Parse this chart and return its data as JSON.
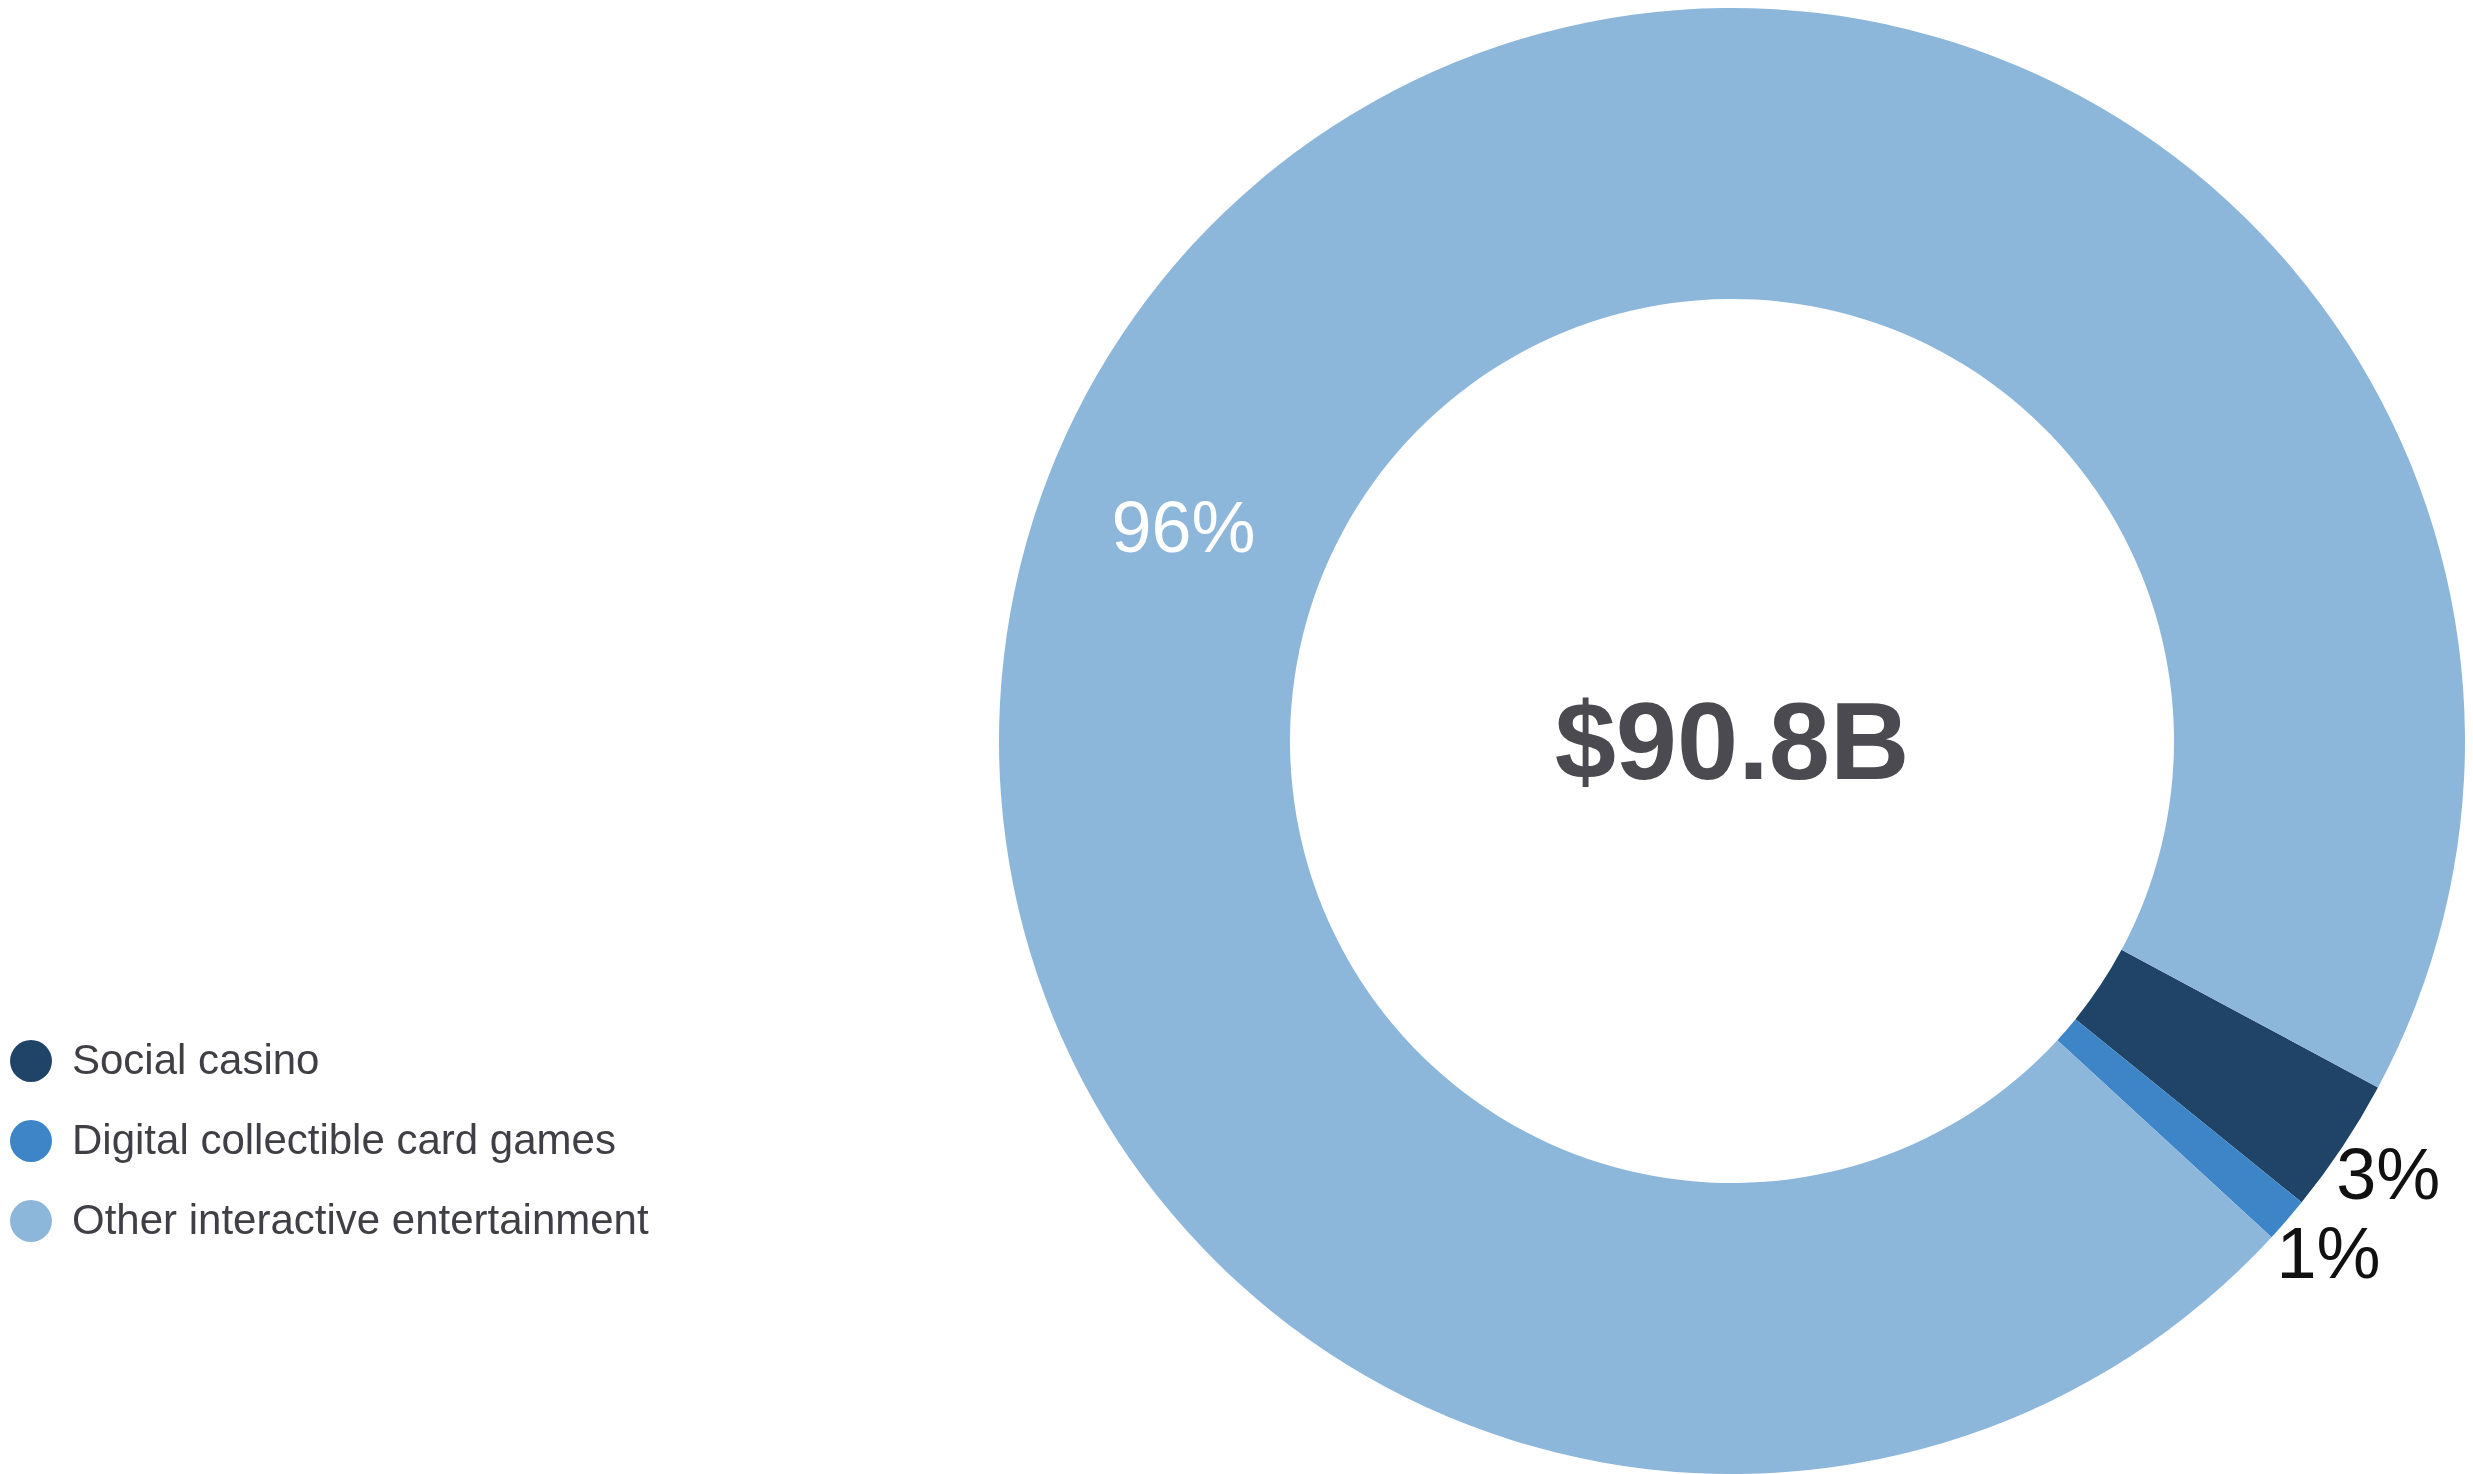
{
  "chart_data": {
    "type": "donut",
    "categories": [
      "Social casino",
      "Digital collectible card games",
      "Other interactive entertainment"
    ],
    "values": [
      3,
      1,
      96
    ],
    "colors": [
      "#1f4467",
      "#3d85c6",
      "#8db6db"
    ],
    "value_labels": [
      "3%",
      "1%",
      "96%"
    ],
    "annotations": [
      "$90.8B"
    ],
    "legend": "bottom left"
  }
}
